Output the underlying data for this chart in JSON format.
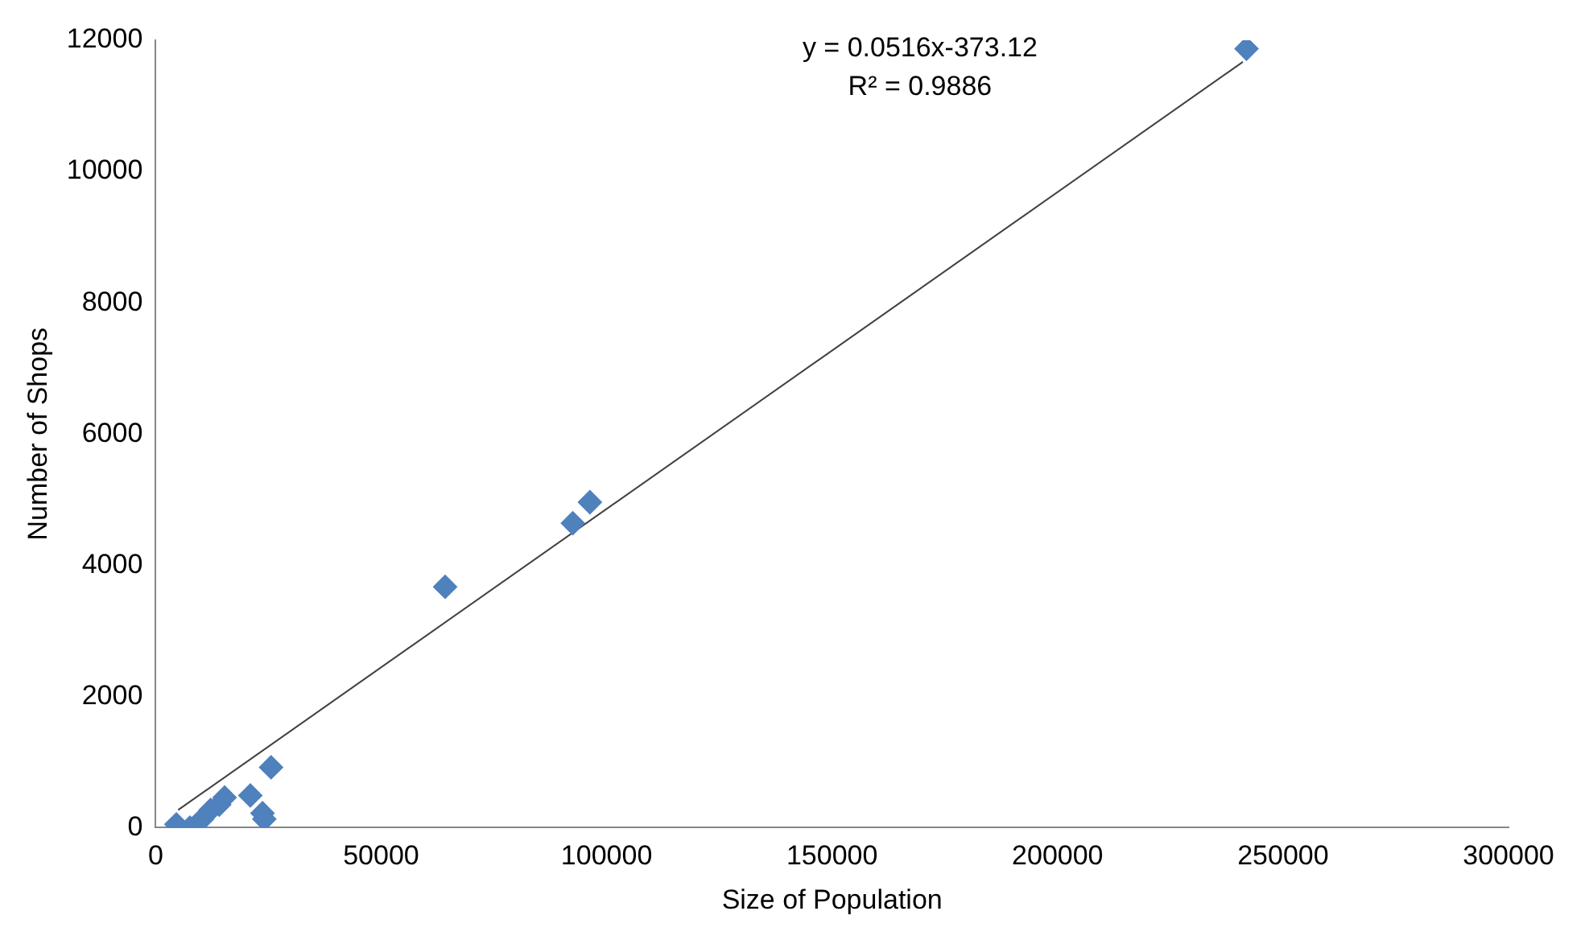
{
  "chart_data": {
    "type": "scatter",
    "xlabel": "Size of Population",
    "ylabel": "Number of Shops",
    "xlim": [
      0,
      300000
    ],
    "xticks": [
      0,
      50000,
      100000,
      150000,
      200000,
      250000,
      300000
    ],
    "ylim": [
      0,
      12000
    ],
    "yticks": [
      0,
      2000,
      4000,
      6000,
      8000,
      10000,
      12000
    ],
    "grid": false,
    "legend": false,
    "marker": "diamond",
    "annotations": [
      "y = 0.0516x-373.12",
      "R² = 0.9886"
    ],
    "series": [
      {
        "color": "#4f81bd",
        "x": [
          4600,
          7600,
          10300,
          12200,
          14100,
          15300,
          21000,
          23700,
          24100,
          25600,
          64200,
          92500,
          96300,
          241900
        ],
        "values": [
          50,
          0,
          130,
          270,
          350,
          460,
          490,
          220,
          130,
          920,
          3670,
          4640,
          4960,
          11870
        ]
      },
      {
        "type": "line",
        "color": "#404040",
        "marker": "none",
        "line_style": "solid",
        "x": [
          5000,
          241100
        ],
        "values": [
          270,
          11670
        ]
      }
    ]
  }
}
